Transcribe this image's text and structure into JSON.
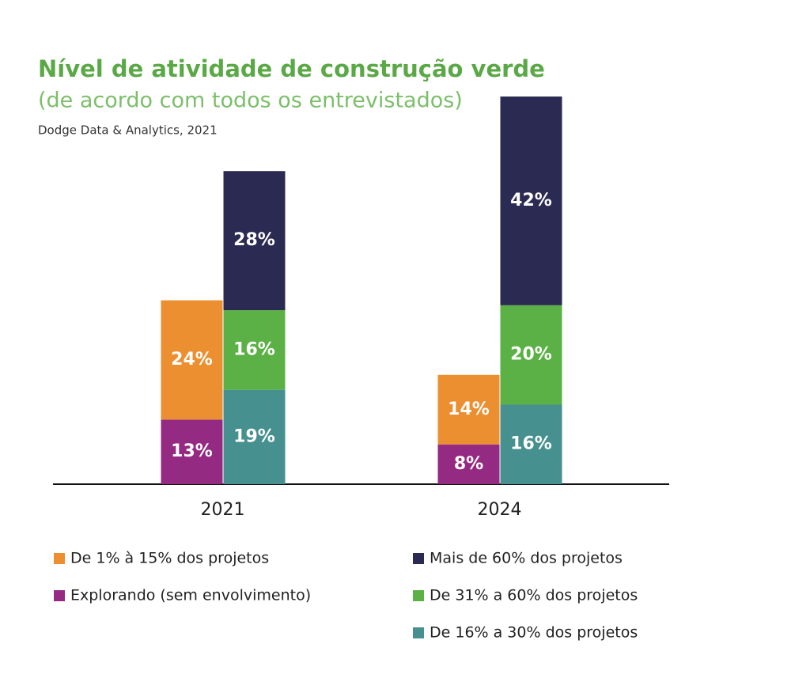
{
  "chart_data": {
    "type": "bar",
    "title": "Nível de atividade de construção verde",
    "subtitle": "(de acordo com todos os entrevistados)",
    "source": "Dodge Data & Analytics, 2021",
    "categories": [
      "2021",
      "2024"
    ],
    "series": [
      {
        "name": "Explorando (sem envolvimento)",
        "color": "#952a83",
        "stack": "left",
        "values": [
          13,
          8
        ],
        "value_labels": [
          "13%",
          "8%"
        ]
      },
      {
        "name": "De 1%  à 15% dos projetos",
        "color": "#ec8f30",
        "stack": "left",
        "values": [
          24,
          14
        ],
        "value_labels": [
          "24%",
          "14%"
        ]
      },
      {
        "name": "De 16% a 30% dos projetos",
        "color": "#46908f",
        "stack": "right",
        "values": [
          19,
          16
        ],
        "value_labels": [
          "19%",
          "16%"
        ]
      },
      {
        "name": "De 31% a 60% dos projetos",
        "color": "#5cb146",
        "stack": "right",
        "values": [
          16,
          20
        ],
        "value_labels": [
          "16%",
          "20%"
        ]
      },
      {
        "name": "Mais de 60% dos projetos",
        "color": "#2b2a52",
        "stack": "right",
        "values": [
          28,
          42
        ],
        "value_labels": [
          "28%",
          "42%"
        ]
      }
    ]
  }
}
